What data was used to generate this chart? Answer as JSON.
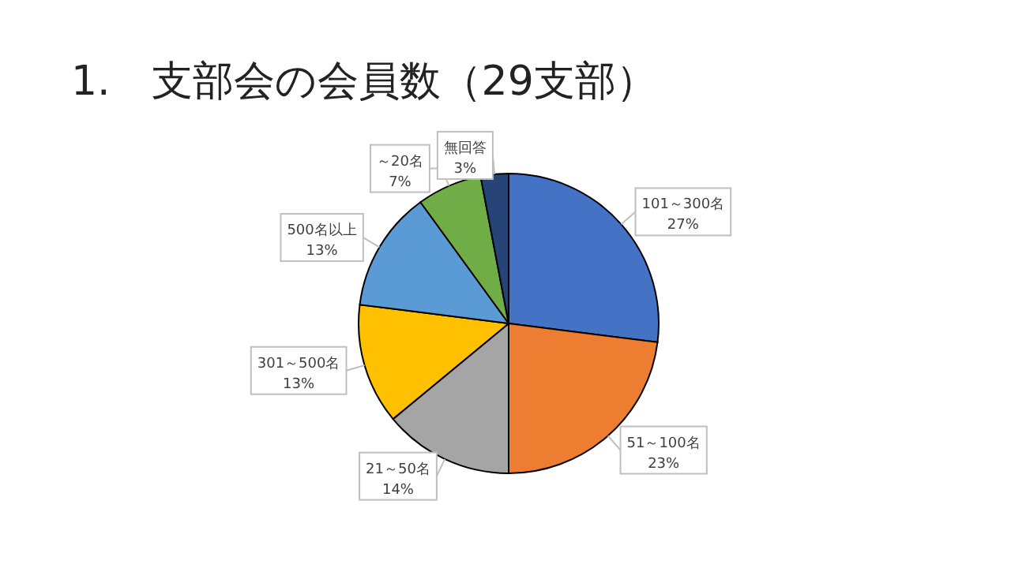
{
  "chart_data": {
    "type": "pie",
    "title": "1.　支部会の会員数（29支部）",
    "categories": [
      "101～300名",
      "51～100名",
      "21～50名",
      "301～500名",
      "500名以上",
      "～20名",
      "無回答"
    ],
    "values": [
      27,
      23,
      14,
      13,
      13,
      7,
      3
    ],
    "colors": [
      "#4472c4",
      "#ed7d31",
      "#a5a5a5",
      "#ffc000",
      "#5b9bd5",
      "#70ad47",
      "#264478"
    ],
    "value_labels": [
      "27%",
      "23%",
      "14%",
      "13%",
      "13%",
      "7%",
      "3%"
    ]
  }
}
